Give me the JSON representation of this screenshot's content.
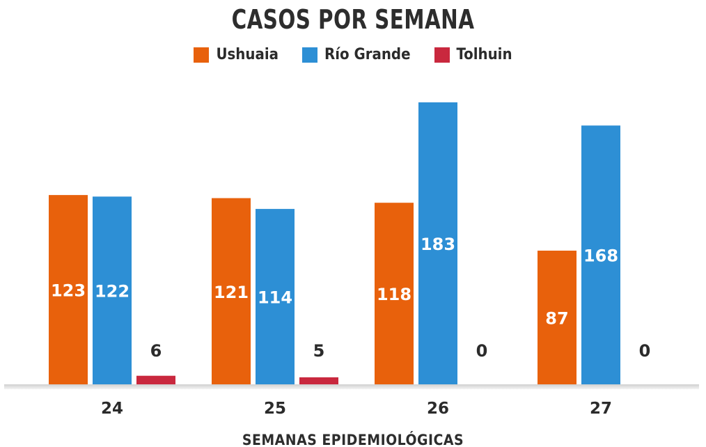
{
  "chart_data": {
    "type": "bar",
    "title": "CASOS POR SEMANA",
    "xlabel": "SEMANAS EPIDEMIOLÓGICAS",
    "ylabel": "",
    "categories": [
      "24",
      "25",
      "26",
      "27"
    ],
    "series": [
      {
        "name": "Ushuaia",
        "color": "#e8610c",
        "values": [
          123,
          121,
          118,
          87
        ]
      },
      {
        "name": "Río Grande",
        "color": "#2d8fd5",
        "values": [
          122,
          114,
          183,
          168
        ]
      },
      {
        "name": "Tolhuin",
        "color": "#c9283e",
        "values": [
          6,
          5,
          0,
          0
        ]
      }
    ],
    "ylim": [
      0,
      183
    ],
    "grid": false,
    "legend_position": "top-center"
  }
}
